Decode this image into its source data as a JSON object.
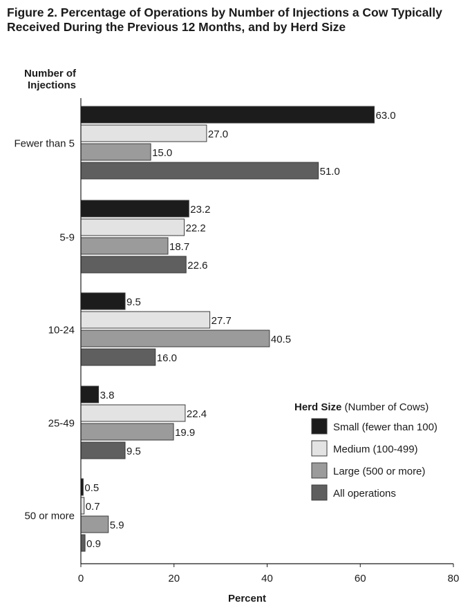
{
  "title": "Figure 2. Percentage of Operations by Number of Injections a Cow Typically Received During the Previous 12 Months, and by Herd Size",
  "ylabel_line1": "Number of",
  "ylabel_line2": "Injections",
  "chart_data": {
    "type": "bar",
    "orientation": "horizontal",
    "title": "Figure 2. Percentage of Operations by Number of Injections a Cow Typically Received During the Previous 12 Months, and by Herd Size",
    "xlabel": "Percent",
    "ylabel": "Number of Injections",
    "xlim": [
      0,
      80
    ],
    "xticks": [
      0,
      20,
      40,
      60,
      80
    ],
    "grid": false,
    "categories": [
      "Fewer than 5",
      "5-9",
      "10-24",
      "25-49",
      "50 or more"
    ],
    "series": [
      {
        "name": "Small (fewer than 100)",
        "color": "#1c1c1c",
        "values": [
          63.0,
          23.2,
          9.5,
          3.8,
          0.5
        ],
        "labels": [
          "63.0",
          "23.2",
          "9.5",
          "3.8",
          "0.5"
        ]
      },
      {
        "name": "Medium (100-499)",
        "color": "#e3e3e3",
        "values": [
          27.0,
          22.2,
          27.7,
          22.4,
          0.7
        ],
        "labels": [
          "27.0",
          "22.2",
          "27.7",
          "22.4",
          "0.7"
        ]
      },
      {
        "name": "Large (500 or more)",
        "color": "#9b9b9b",
        "values": [
          15.0,
          18.7,
          40.5,
          19.9,
          5.9
        ],
        "labels": [
          "15.0",
          "18.7",
          "40.5",
          "19.9",
          "5.9"
        ]
      },
      {
        "name": "All operations",
        "color": "#5f5f5f",
        "values": [
          51.0,
          22.6,
          16.0,
          9.5,
          0.9
        ],
        "labels": [
          "51.0",
          "22.6",
          "16.0",
          "9.5",
          "0.9"
        ]
      }
    ],
    "legend": {
      "title_bold": "Herd Size",
      "title_rest": " (Number of Cows)",
      "placement": "right"
    }
  }
}
